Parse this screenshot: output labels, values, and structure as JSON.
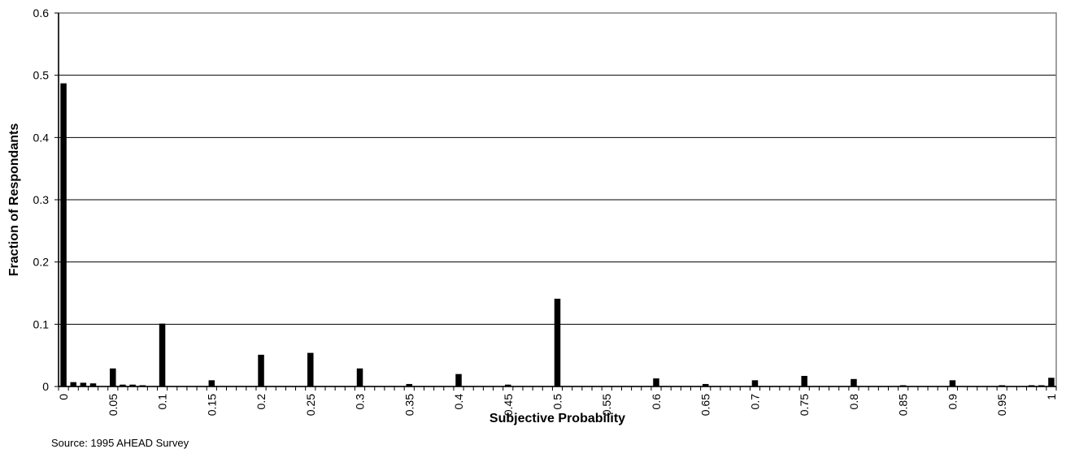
{
  "chart_data": {
    "type": "bar",
    "xlabel": "Subjective Probability",
    "ylabel": "Fraction of Respondants",
    "ylim": [
      0,
      0.6
    ],
    "yticks": [
      "0",
      "0.1",
      "0.2",
      "0.3",
      "0.4",
      "0.5",
      "0.6"
    ],
    "xtick_labels": [
      "0",
      "0.05",
      "0.1",
      "0.15",
      "0.2",
      "0.25",
      "0.3",
      "0.35",
      "0.4",
      "0.45",
      "0.5",
      "0.55",
      "0.6",
      "0.65",
      "0.7",
      "0.75",
      "0.8",
      "0.85",
      "0.9",
      "0.95",
      "1"
    ],
    "grid": true,
    "legend": "none",
    "colors": {
      "bar": "#000000",
      "grid": "#000000",
      "frame": "#808080"
    },
    "x": [
      0,
      0.01,
      0.02,
      0.03,
      0.05,
      0.06,
      0.07,
      0.08,
      0.1,
      0.15,
      0.2,
      0.25,
      0.3,
      0.35,
      0.4,
      0.45,
      0.5,
      0.6,
      0.65,
      0.7,
      0.75,
      0.8,
      0.85,
      0.9,
      0.95,
      0.98,
      0.99,
      1
    ],
    "values": [
      0.487,
      0.007,
      0.006,
      0.005,
      0.029,
      0.003,
      0.003,
      0.002,
      0.101,
      0.01,
      0.051,
      0.054,
      0.029,
      0.004,
      0.02,
      0.003,
      0.141,
      0.013,
      0.004,
      0.01,
      0.017,
      0.012,
      0.002,
      0.01,
      0.002,
      0.002,
      0.002,
      0.014
    ]
  },
  "source_note": "Source: 1995 AHEAD Survey"
}
